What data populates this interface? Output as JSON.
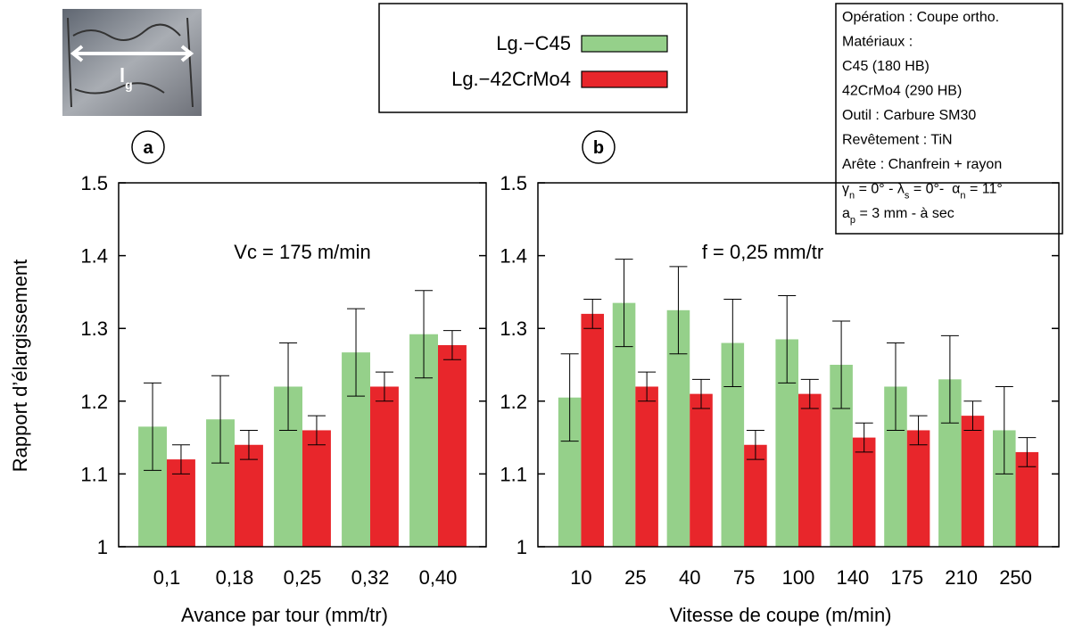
{
  "photo_label": [
    {
      "text": "l"
    },
    {
      "text": "g",
      "sub": true
    }
  ],
  "info": [
    [
      {
        "text": "Opération : Coupe ortho."
      }
    ],
    [
      {
        "text": "Matériaux :"
      }
    ],
    [
      {
        "text": "C45 (180 HB)"
      }
    ],
    [
      {
        "text": "42CrMo4 (290 HB)"
      }
    ],
    [
      {
        "text": "Outil : Carbure SM30"
      }
    ],
    [
      {
        "text": "Revêtement : TiN"
      }
    ],
    [
      {
        "text": "Arête : Chanfrein + rayon"
      }
    ],
    [
      {
        "text": "γ"
      },
      {
        "text": "n",
        "sub": true
      },
      {
        "text": " = 0° - λ"
      },
      {
        "text": "s",
        "sub": true
      },
      {
        "text": " = 0°-  α"
      },
      {
        "text": "n",
        "sub": true
      },
      {
        "text": " = 11°"
      }
    ],
    [
      {
        "text": "a"
      },
      {
        "text": "p",
        "sub": true
      },
      {
        "text": " = 3 mm - à sec"
      }
    ]
  ],
  "chart_data": [
    {
      "type": "bar",
      "label": "a",
      "annotation": "Vc = 175 m/min",
      "y_label": "Rapport d’élargissement",
      "x_label": "Avance par tour (mm/tr)",
      "categories": [
        "0,1",
        "0,18",
        "0,25",
        "0,32",
        "0,40"
      ],
      "ylim": [
        1,
        1.5
      ],
      "yticks": [
        1,
        1.1,
        1.2,
        1.3,
        1.4,
        1.5
      ],
      "series": [
        {
          "name": "Lg.−C45",
          "color": "#95d08a",
          "values": [
            1.165,
            1.175,
            1.22,
            1.267,
            1.292
          ],
          "errors": [
            0.06,
            0.06,
            0.06,
            0.06,
            0.06
          ]
        },
        {
          "name": "Lg.−42CrMo4",
          "color": "#e8262b",
          "values": [
            1.12,
            1.14,
            1.16,
            1.22,
            1.277
          ],
          "errors": [
            0.02,
            0.02,
            0.02,
            0.02,
            0.02
          ]
        }
      ]
    },
    {
      "type": "bar",
      "label": "b",
      "annotation": "f = 0,25 mm/tr",
      "x_label": "Vitesse de coupe (m/min)",
      "categories": [
        "10",
        "25",
        "40",
        "75",
        "100",
        "140",
        "175",
        "210",
        "250"
      ],
      "ylim": [
        1,
        1.5
      ],
      "yticks": [
        1,
        1.1,
        1.2,
        1.3,
        1.4,
        1.5
      ],
      "series": [
        {
          "name": "Lg.−C45",
          "color": "#95d08a",
          "values": [
            1.205,
            1.335,
            1.325,
            1.28,
            1.285,
            1.25,
            1.22,
            1.23,
            1.16
          ],
          "errors": [
            0.06,
            0.06,
            0.06,
            0.06,
            0.06,
            0.06,
            0.06,
            0.06,
            0.06
          ]
        },
        {
          "name": "Lg.−42CrMo4",
          "color": "#e8262b",
          "values": [
            1.32,
            1.22,
            1.21,
            1.14,
            1.21,
            1.15,
            1.16,
            1.18,
            1.13
          ],
          "errors": [
            0.02,
            0.02,
            0.02,
            0.02,
            0.02,
            0.02,
            0.02,
            0.02,
            0.02
          ]
        }
      ]
    }
  ]
}
